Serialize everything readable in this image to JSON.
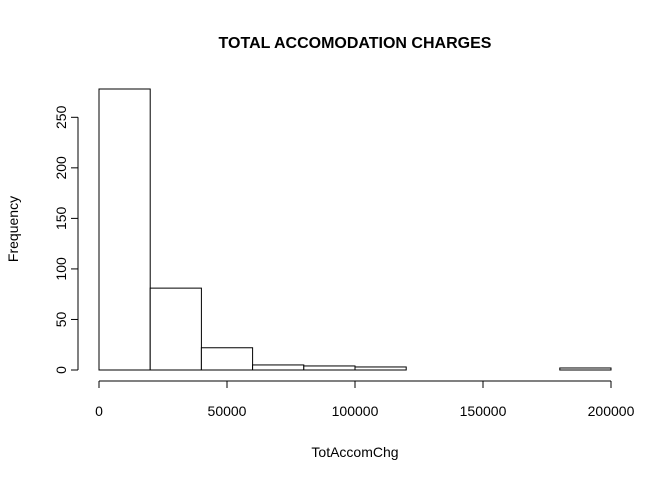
{
  "chart_data": {
    "type": "bar",
    "title": "TOTAL ACCOMODATION CHARGES",
    "xlabel": "TotAccomChg",
    "ylabel": "Frequency",
    "bin_edges": [
      0,
      20000,
      40000,
      60000,
      80000,
      100000,
      120000,
      140000,
      160000,
      180000,
      200000
    ],
    "values": [
      278,
      81,
      22,
      5,
      4,
      3,
      0,
      0,
      0,
      2
    ],
    "xlim": [
      0,
      200000
    ],
    "ylim": [
      0,
      278
    ],
    "x_ticks": [
      0,
      50000,
      100000,
      150000,
      200000
    ],
    "y_ticks": [
      0,
      50,
      100,
      150,
      200,
      250
    ],
    "grid": false,
    "legend": "none"
  }
}
